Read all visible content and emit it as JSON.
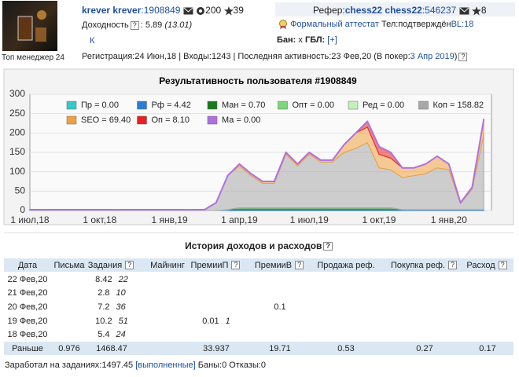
{
  "profile": {
    "avatar_caption": "Топ менеджер 24",
    "name": "krever krever",
    "id": ":1908849",
    "gears": "200",
    "stars": "39",
    "yield_label": "Доходность",
    "help": "?",
    "yield_value": ": 5.89",
    "yield_total": "(13.01)",
    "k_link": "К",
    "referrer_label": "Рефер:",
    "referrer_name": "chess22 chess22",
    "referrer_id": ":546237",
    "referrer_stars": "8",
    "attestat": "Формальный аттестат",
    "phone": "Тел:подтверждён",
    "bl": "BL:18",
    "ban_label": "Бан:",
    "ban_value": "x",
    "gbl_label": "ГБЛ:",
    "gbl_link": "[+]",
    "activity": "Регистрация:24 Июн,18 | Входы:1243 | Последняя активность:23 Фев,20 (В покер:",
    "poker_date": "3 Апр 2019",
    "activity_close": ")"
  },
  "chart_data": {
    "type": "stacked_area",
    "title": "Результативность пользователя #1908849",
    "categories": [
      "1 июл,18",
      null,
      null,
      null,
      null,
      null,
      "1 окт,18",
      null,
      null,
      null,
      null,
      null,
      "1 янв,19",
      null,
      null,
      null,
      null,
      null,
      "1 апр,19",
      null,
      null,
      null,
      null,
      null,
      "1 июл,19",
      null,
      null,
      null,
      null,
      null,
      "1 окт,19",
      null,
      null,
      null,
      null,
      null,
      "1 янв,20",
      null,
      null,
      null
    ],
    "ylim": [
      0,
      300
    ],
    "yticks": [
      0,
      50,
      100,
      150,
      200,
      250,
      300
    ],
    "grid": true,
    "legend": "top",
    "series": [
      {
        "name": "Пр = 0.00",
        "color": "#38c8c8",
        "values": [
          0,
          0,
          0,
          0,
          0,
          0,
          0,
          0,
          0,
          0,
          0,
          0,
          0,
          0,
          0,
          0,
          0,
          0,
          0,
          0,
          0,
          0,
          0,
          0,
          0,
          0,
          0,
          0,
          0,
          0,
          0,
          0,
          0,
          0,
          0,
          0,
          0,
          0,
          0,
          0
        ]
      },
      {
        "name": "Рф = 4.42",
        "color": "#2c7fd0",
        "values": [
          0,
          0,
          0,
          0,
          0,
          0,
          0,
          0,
          0,
          0,
          0,
          0,
          0,
          0,
          0,
          0,
          0,
          2,
          2,
          2,
          2,
          2,
          2,
          2,
          2,
          2,
          2,
          2,
          2,
          2,
          2,
          2,
          2,
          2,
          2,
          2,
          2,
          2,
          2,
          2
        ]
      },
      {
        "name": "Ман = 0.70",
        "color": "#1a7a1a",
        "values": [
          0,
          0,
          0,
          0,
          0,
          0,
          0,
          0,
          0,
          0,
          0,
          0,
          0,
          0,
          0,
          0,
          0,
          0,
          5,
          5,
          5,
          5,
          5,
          5,
          5,
          5,
          5,
          5,
          5,
          5,
          5,
          5,
          0,
          0,
          0,
          0,
          0,
          0,
          0,
          0
        ]
      },
      {
        "name": "Опт = 0.00",
        "color": "#7cd67c",
        "values": [
          0,
          0,
          0,
          0,
          0,
          0,
          0,
          0,
          0,
          0,
          0,
          0,
          0,
          0,
          0,
          0,
          0,
          0,
          0,
          0,
          0,
          0,
          0,
          0,
          0,
          0,
          0,
          0,
          0,
          0,
          0,
          0,
          0,
          0,
          0,
          0,
          0,
          0,
          0,
          0
        ]
      },
      {
        "name": "Ред = 0.00",
        "color": "#c4f0bc",
        "values": [
          0,
          0,
          0,
          0,
          0,
          0,
          0,
          0,
          0,
          0,
          0,
          0,
          0,
          0,
          0,
          0,
          0,
          0,
          0,
          0,
          0,
          0,
          0,
          0,
          0,
          0,
          0,
          0,
          0,
          0,
          0,
          0,
          0,
          0,
          0,
          0,
          0,
          0,
          0,
          0
        ]
      },
      {
        "name": "Коп = 158.82",
        "color": "#a8a8a8",
        "values": [
          2,
          2,
          2,
          2,
          2,
          2,
          2,
          2,
          2,
          2,
          2,
          2,
          2,
          2,
          2,
          2,
          20,
          88,
          108,
          83,
          63,
          63,
          138,
          108,
          138,
          118,
          118,
          143,
          153,
          168,
          103,
          98,
          83,
          88,
          93,
          108,
          103,
          16,
          53,
          193
        ]
      },
      {
        "name": "SEO = 69.40",
        "color": "#f0a040",
        "values": [
          0,
          0,
          0,
          0,
          0,
          0,
          0,
          0,
          0,
          0,
          0,
          0,
          0,
          0,
          0,
          0,
          0,
          0,
          5,
          5,
          5,
          5,
          5,
          5,
          5,
          5,
          5,
          20,
          40,
          40,
          35,
          30,
          25,
          20,
          25,
          30,
          15,
          2,
          5,
          40
        ]
      },
      {
        "name": "Оп = 8.10",
        "color": "#e82020",
        "values": [
          0,
          0,
          0,
          0,
          0,
          0,
          0,
          0,
          0,
          0,
          0,
          0,
          0,
          0,
          0,
          0,
          0,
          0,
          0,
          0,
          0,
          0,
          0,
          0,
          0,
          0,
          0,
          0,
          0,
          15,
          20,
          15,
          0,
          0,
          0,
          0,
          0,
          0,
          0,
          0
        ]
      },
      {
        "name": "Ма = 0.00",
        "color": "#b070e0",
        "values": [
          0,
          0,
          0,
          0,
          0,
          0,
          0,
          0,
          0,
          0,
          0,
          0,
          0,
          0,
          0,
          0,
          0,
          0,
          0,
          0,
          0,
          0,
          0,
          0,
          0,
          0,
          0,
          0,
          0,
          0,
          0,
          0,
          0,
          0,
          0,
          0,
          0,
          0,
          0,
          0
        ]
      }
    ]
  },
  "history": {
    "title": "История доходов и расходов",
    "help": "?",
    "columns": [
      {
        "label": "Дата"
      },
      {
        "label": "Письма"
      },
      {
        "label": "Задания",
        "help": "?"
      },
      {
        "label": "Майнинг"
      },
      {
        "label": "ПремииП",
        "help": "?"
      },
      {
        "label": "ПремииВ",
        "help": "?"
      },
      {
        "label": "Продажа реф."
      },
      {
        "label": "Покупка реф.",
        "help": "?"
      },
      {
        "label": "Расход",
        "help": "?"
      }
    ],
    "rows": [
      [
        "22 Фев,20",
        null,
        [
          "8.42",
          "22"
        ],
        null,
        null,
        null,
        null,
        null,
        null
      ],
      [
        "21 Фев,20",
        null,
        [
          "2.8",
          "10"
        ],
        null,
        null,
        null,
        null,
        null,
        null
      ],
      [
        "20 Фев,20",
        null,
        [
          "7.2",
          "36"
        ],
        null,
        null,
        "0.1",
        null,
        null,
        null
      ],
      [
        "19 Фев,20",
        null,
        [
          "10.2",
          "51"
        ],
        null,
        [
          "0.01",
          "1"
        ],
        null,
        null,
        null,
        null
      ],
      [
        "18 Фев,20",
        null,
        [
          "5.4",
          "24"
        ],
        null,
        null,
        null,
        null,
        null,
        null
      ],
      [
        "Раньше",
        "0.976",
        "1468.47",
        null,
        "33.937",
        "19.71",
        "0.53",
        "0.27",
        "0.17"
      ]
    ],
    "footer_text": "Заработал на заданиях:1497.45",
    "footer_link": "[выполненные]",
    "footer_rest": "Баны:0 Отказы:0"
  }
}
